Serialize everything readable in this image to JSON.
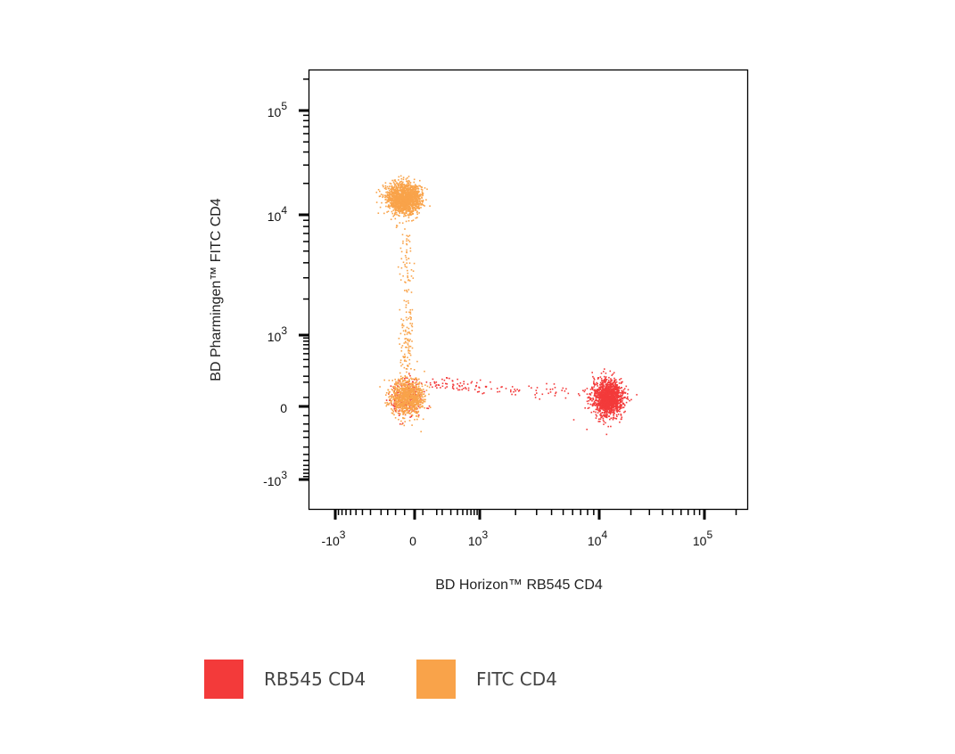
{
  "chart_data": {
    "type": "scatter",
    "title": "",
    "xlabel": "BD Horizon™ RB545 CD4",
    "ylabel": "BD Pharmingen™ FITC CD4",
    "x_scale": "biexponential",
    "y_scale": "biexponential",
    "x_ticks": [
      {
        "value": -1000,
        "base": "-10",
        "exp": "3"
      },
      {
        "value": 0,
        "base": "0",
        "exp": ""
      },
      {
        "value": 1000,
        "base": "10",
        "exp": "3"
      },
      {
        "value": 10000,
        "base": "10",
        "exp": "4"
      },
      {
        "value": 100000,
        "base": "10",
        "exp": "5"
      }
    ],
    "y_ticks": [
      {
        "value": -1000,
        "base": "-10",
        "exp": "3"
      },
      {
        "value": 0,
        "base": "0",
        "exp": ""
      },
      {
        "value": 1000,
        "base": "10",
        "exp": "3"
      },
      {
        "value": 10000,
        "base": "10",
        "exp": "4"
      },
      {
        "value": 100000,
        "base": "10",
        "exp": "5"
      }
    ],
    "grid": false,
    "legend_position": "bottom",
    "series": [
      {
        "name": "RB545 CD4",
        "color": "#f33a3a",
        "populations": [
          {
            "center": [
              12000,
              50
            ],
            "count": 1400
          },
          {
            "center": [
              -40,
              55
            ],
            "count": 250
          },
          {
            "bridge_from": [
              100,
              150
            ],
            "bridge_to": [
              8000,
              80
            ],
            "count": 120
          }
        ]
      },
      {
        "name": "FITC CD4",
        "color": "#f9a34a",
        "populations": [
          {
            "center": [
              -58,
              14500
            ],
            "count": 1500
          },
          {
            "center": [
              -40,
              55
            ],
            "count": 900
          },
          {
            "bridge_from": [
              -40,
              300
            ],
            "bridge_to": [
              -40,
              8000
            ],
            "count": 160
          }
        ]
      }
    ]
  },
  "legend": [
    {
      "label": "RB545 CD4",
      "color": "#f33a3a"
    },
    {
      "label": "FITC CD4",
      "color": "#f9a34a"
    }
  ]
}
